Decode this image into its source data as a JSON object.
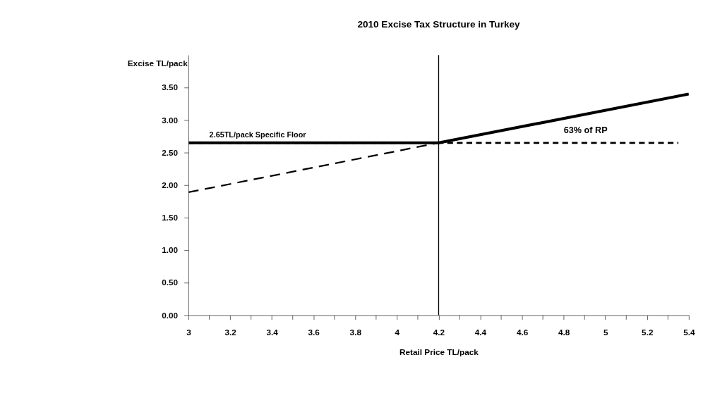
{
  "chart_data": {
    "type": "line",
    "title": "2010 Excise Tax Structure in Turkey",
    "xlabel": "Retail Price TL/pack",
    "ylabel": "Excise TL/pack",
    "series": [
      {
        "x": [
          3,
          4.2,
          5.4
        ],
        "values": [
          2.65,
          2.65,
          3.4
        ],
        "color": "#000000",
        "line_style": "solid"
      },
      {
        "x": [
          3,
          4.2
        ],
        "values": [
          1.89,
          2.65
        ],
        "color": "#000000",
        "line_style": "dashed"
      },
      {
        "x": [
          3,
          5.35
        ],
        "values": [
          2.65,
          2.65
        ],
        "color": "#000000",
        "line_style": "dotted"
      }
    ],
    "xlim": [
      3,
      5.4
    ],
    "ylim": [
      0,
      4
    ],
    "xticks": [
      3,
      {
        "value": 3.1,
        "label": null
      },
      3.2,
      {
        "value": 3.3,
        "label": null
      },
      3.4,
      {
        "value": 3.5,
        "label": null
      },
      3.6,
      {
        "value": 3.7,
        "label": null
      },
      3.8,
      {
        "value": 3.9,
        "label": null
      },
      4,
      {
        "value": 4.1,
        "label": null
      },
      4.2,
      {
        "value": 4.3,
        "label": null
      },
      4.4,
      {
        "value": 4.5,
        "label": null
      },
      4.6,
      {
        "value": 4.7,
        "label": null
      },
      4.8,
      {
        "value": 4.9,
        "label": null
      },
      5,
      {
        "value": 5.1,
        "label": null
      },
      5.2,
      {
        "value": 5.3,
        "label": null
      },
      5.4
    ],
    "yticks": [
      {
        "value": 0,
        "label": "0.00"
      },
      {
        "value": 0.5,
        "label": "0.50"
      },
      {
        "value": 1,
        "label": "1.00"
      },
      {
        "value": 1.5,
        "label": "1.50"
      },
      {
        "value": 2,
        "label": "2.00"
      },
      {
        "value": 2.5,
        "label": "2.50"
      },
      {
        "value": 3,
        "label": "3.00"
      },
      {
        "value": 3.5,
        "label": "3.50"
      }
    ],
    "ref_lines": [
      {
        "axis": "x",
        "value": 4.2,
        "color": "#000000"
      }
    ],
    "annotations": [
      {
        "text": "2.65TL/pack Specific Floor",
        "x": 3.1,
        "y": 2.65
      },
      {
        "text": "63% of RP",
        "x": 4.8,
        "y": 2.65
      }
    ],
    "marker": "none"
  }
}
